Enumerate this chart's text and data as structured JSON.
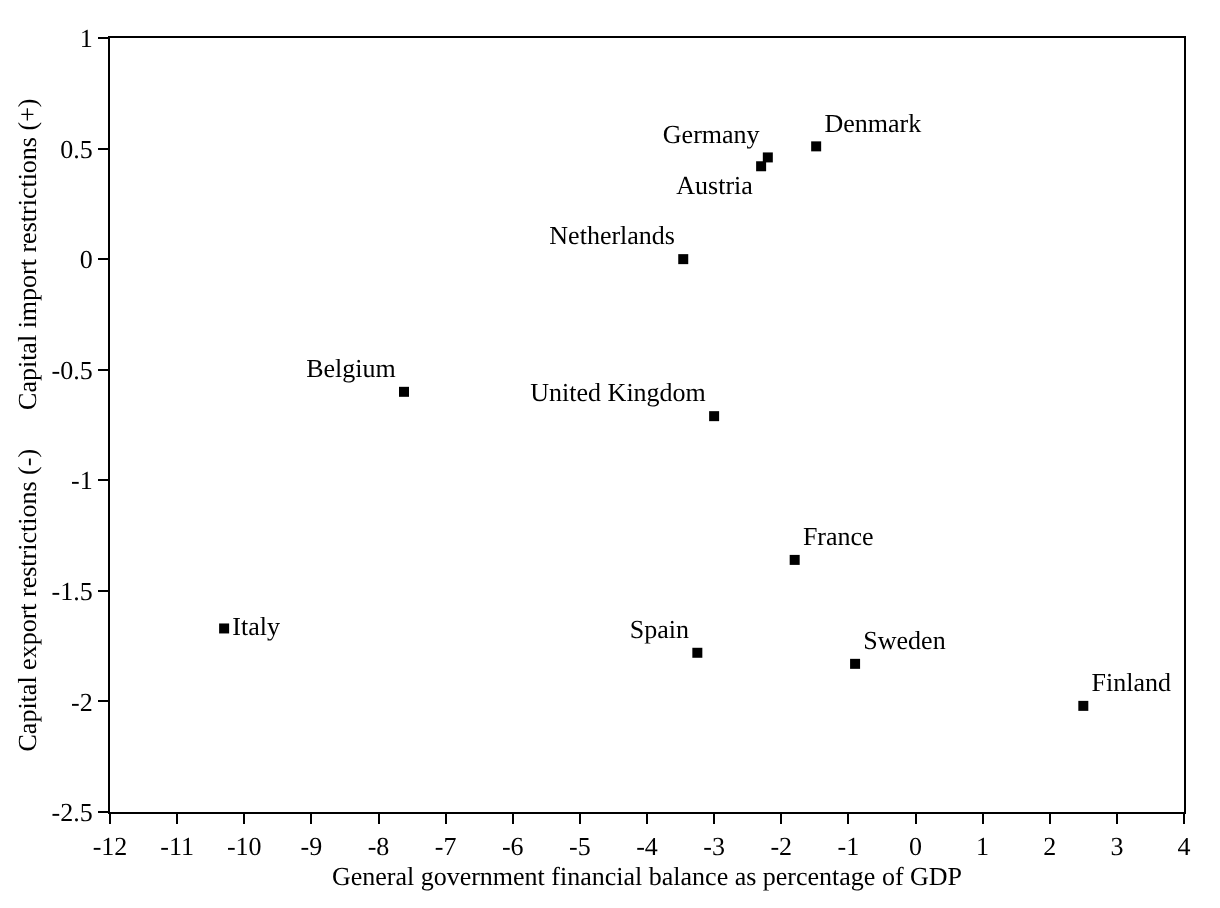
{
  "chart_data": {
    "type": "scatter",
    "xlabel": "General government financial balance as percentage of GDP",
    "ylabel": "Capital export restrictions (-)      Capital import restrictions (+)",
    "x": [
      -2.2,
      -1.48,
      -2.3,
      -3.46,
      -7.62,
      -3.0,
      -1.8,
      -10.3,
      -3.25,
      -0.9,
      2.5
    ],
    "series": [
      {
        "color": "#000000",
        "values": [
          0.46,
          0.51,
          0.42,
          0.0,
          -0.6,
          -0.71,
          -1.36,
          -1.67,
          -1.78,
          -1.83,
          -2.02
        ],
        "value_labels": [
          "Germany",
          "Denmark",
          "Austria",
          "Netherlands",
          "Belgium",
          "United Kingdom",
          "France",
          "Italy",
          "Spain",
          "Sweden",
          "Finland"
        ]
      }
    ],
    "marker": "square",
    "xlim": [
      -12,
      4
    ],
    "xticks": [
      -12,
      -11,
      -10,
      -9,
      -8,
      -7,
      -6,
      -5,
      -4,
      -3,
      -2,
      -1,
      0,
      1,
      2,
      3,
      4
    ],
    "ylim": [
      -2.5,
      1
    ],
    "yticks": [
      -2.5,
      -2,
      -1.5,
      -1,
      -0.5,
      0,
      0.5,
      1
    ]
  }
}
